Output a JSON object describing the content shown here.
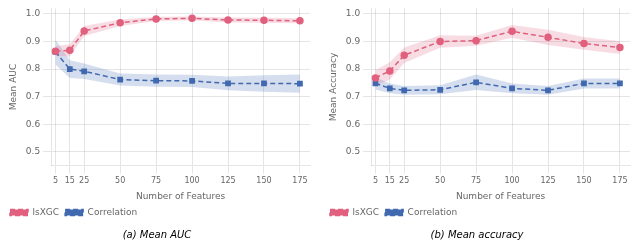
{
  "chart_data": [
    {
      "type": "line",
      "title": "(a) Mean AUC",
      "x_label": "Number of Features",
      "y_label": "Mean AUC",
      "x": [
        5,
        15,
        25,
        50,
        75,
        100,
        125,
        150,
        175
      ],
      "series": [
        {
          "name": "lsXGC",
          "color": "#e0607e",
          "marker": "o",
          "line_style": "dashed",
          "values": [
            0.865,
            0.868,
            0.938,
            0.968,
            0.982,
            0.984,
            0.978,
            0.977,
            0.975
          ],
          "lower": [
            0.847,
            0.846,
            0.92,
            0.956,
            0.974,
            0.977,
            0.969,
            0.968,
            0.966
          ],
          "upper": [
            0.883,
            0.89,
            0.956,
            0.98,
            0.99,
            0.991,
            0.987,
            0.986,
            0.984
          ]
        },
        {
          "name": "Correlation",
          "color": "#4169b0",
          "marker": "s",
          "line_style": "dashed",
          "values": [
            0.862,
            0.8,
            0.792,
            0.762,
            0.758,
            0.757,
            0.748,
            0.748,
            0.747
          ],
          "lower": [
            0.817,
            0.768,
            0.764,
            0.74,
            0.736,
            0.735,
            0.723,
            0.718,
            0.714
          ],
          "upper": [
            0.907,
            0.832,
            0.82,
            0.784,
            0.78,
            0.779,
            0.773,
            0.778,
            0.78
          ]
        }
      ],
      "xlim": [
        2,
        182
      ],
      "xticks": [
        5,
        15,
        25,
        50,
        75,
        100,
        125,
        150,
        175
      ],
      "ylim": [
        0.45,
        1.02
      ],
      "yticks": [
        0.5,
        0.6,
        0.7,
        0.8,
        0.9,
        {
          "value": 1.0,
          "label": "1.0"
        }
      ],
      "grid": true,
      "legend": "lower left"
    },
    {
      "type": "line",
      "title": "(b) Mean accuracy",
      "x_label": "Number of Features",
      "y_label": "Mean Accuracy",
      "x": [
        5,
        15,
        25,
        50,
        75,
        100,
        125,
        150,
        175
      ],
      "series": [
        {
          "name": "lsXGC",
          "color": "#e0607e",
          "marker": "o",
          "line_style": "dashed",
          "values": [
            0.768,
            0.793,
            0.85,
            0.9,
            0.903,
            0.937,
            0.915,
            0.893,
            0.878
          ],
          "lower": [
            0.74,
            0.761,
            0.822,
            0.877,
            0.885,
            0.914,
            0.887,
            0.87,
            0.855
          ],
          "upper": [
            0.796,
            0.825,
            0.878,
            0.923,
            0.921,
            0.96,
            0.943,
            0.916,
            0.901
          ]
        },
        {
          "name": "Correlation",
          "color": "#4169b0",
          "marker": "s",
          "line_style": "dashed",
          "values": [
            0.748,
            0.73,
            0.723,
            0.725,
            0.752,
            0.73,
            0.723,
            0.748,
            0.748
          ],
          "lower": [
            0.726,
            0.712,
            0.707,
            0.709,
            0.724,
            0.712,
            0.707,
            0.73,
            0.73
          ],
          "upper": [
            0.77,
            0.748,
            0.739,
            0.741,
            0.78,
            0.748,
            0.739,
            0.766,
            0.766
          ]
        }
      ],
      "xlim": [
        2,
        182
      ],
      "xticks": [
        5,
        15,
        25,
        50,
        75,
        100,
        125,
        150,
        175
      ],
      "ylim": [
        0.45,
        1.02
      ],
      "yticks": [
        0.5,
        0.6,
        0.7,
        0.8,
        0.9,
        {
          "value": 1.0,
          "label": "1.0"
        }
      ],
      "grid": true,
      "legend": "lower left"
    }
  ]
}
